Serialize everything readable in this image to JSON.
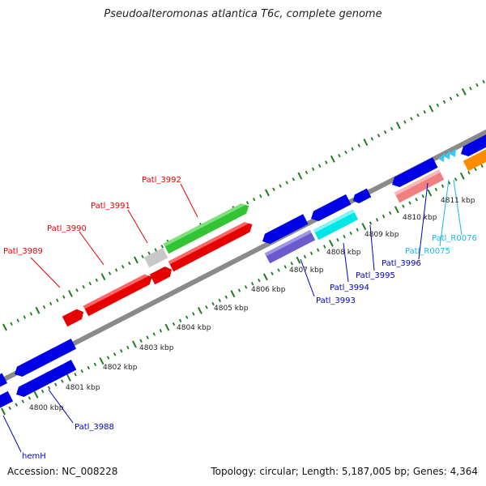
{
  "title": "Pseudoalteromonas atlantica T6c, complete genome",
  "footer": {
    "accession": "Accession: NC_008228",
    "summary": "Topology: circular; Length: 5,187,005 bp; Genes: 4,364"
  },
  "colors": {
    "backbone": "#808080",
    "tick": "#1e7b1e",
    "upper_label": "#e60000",
    "lower_label": "#0000cc",
    "rna_label": "#1ab8e6",
    "scale_label": "#222222"
  },
  "scale_ticks": [
    "4800 kbp",
    "4801 kbp",
    "4802 kbp",
    "4803 kbp",
    "4804 kbp",
    "4805 kbp",
    "4806 kbp",
    "4807 kbp",
    "4808 kbp",
    "4809 kbp",
    "4810 kbp",
    "4811 kbp"
  ],
  "labels": {
    "patl_3989": "Patl_3989",
    "patl_3990": "Patl_3990",
    "patl_3991": "Patl_3991",
    "patl_3992": "Patl_3992",
    "patl_3988": "Patl_3988",
    "hemh": "hemH",
    "patl_3993": "Patl_3993",
    "patl_3994": "Patl_3994",
    "patl_3995": "Patl_3995",
    "patl_3996": "Patl_3996",
    "patl_r0075": "Patl_R0075",
    "patl_r0076": "Patl_R0076"
  },
  "feature_colors": {
    "red": "#e60000",
    "green": "#33c433",
    "gray": "#c8c8c8",
    "blue": "#0000e6",
    "purple": "#6a5acd",
    "cyan": "#00e6e6",
    "salmon": "#f08080",
    "orange": "#ff8c00",
    "light_cyan": "#38c8f0"
  }
}
